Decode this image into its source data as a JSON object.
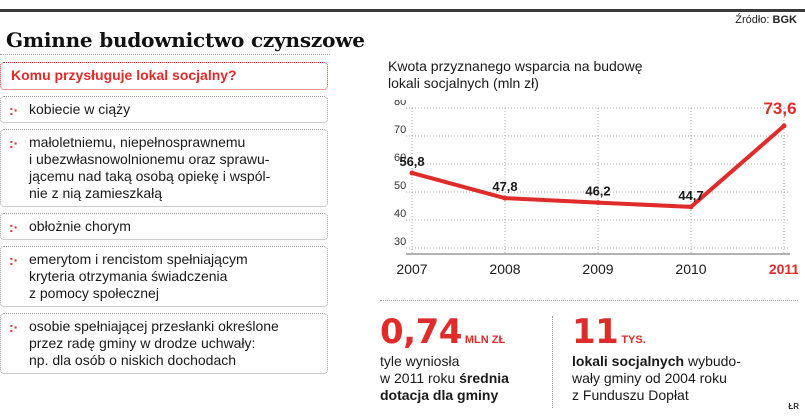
{
  "header": {
    "title": "Gminne budownictwo czynszowe",
    "source_label": "Źródło:",
    "source_value": "BGK"
  },
  "eligibility": {
    "question": "Komu przysługuje lokal socjalny?",
    "items": [
      {
        "lines": [
          "kobiecie w ciąży"
        ]
      },
      {
        "lines": [
          "małoletniemu, niepełnosprawnemu",
          "i ubezwłasnowolnionemu oraz sprawu-",
          "jącemu nad taką osobą opiekę i wspól-",
          "nie z nią zamieszkałą"
        ]
      },
      {
        "lines": [
          "obłożnie chorym"
        ]
      },
      {
        "lines": [
          "emerytom i rencistom spełniającym",
          "kryteria otrzymania świadczenia",
          "z pomocy społecznej"
        ]
      },
      {
        "lines": [
          "osobie spełniającej przesłanki określone",
          "przez radę gminy w drodze uchwały:",
          "np. dla osób o niskich dochodach"
        ]
      }
    ]
  },
  "colors": {
    "accent": "#e02b2b",
    "grid": "#a8a8a8",
    "text": "#1a1a1a"
  },
  "chart_data": {
    "type": "line",
    "title_lines": [
      "Kwota przyznanego wsparcia na budowę",
      "lokali socjalnych (mln zł)"
    ],
    "categories": [
      "2007",
      "2008",
      "2009",
      "2010",
      "2011"
    ],
    "values": [
      56.8,
      47.8,
      46.2,
      44.7,
      73.6
    ],
    "value_labels": [
      "56,8",
      "47,8",
      "46,2",
      "44,7",
      "73,6"
    ],
    "highlight_index": 4,
    "ylim": [
      30,
      80
    ],
    "yticks": [
      30,
      40,
      50,
      60,
      70,
      80
    ],
    "grid": true
  },
  "stats": [
    {
      "number": "0,74",
      "unit": "MLN ZŁ",
      "text_plain_1": "tyle wyniosła",
      "text_plain_2": "w 2011 roku ",
      "text_bold_2": "średnia",
      "text_bold_3": "dotacja dla gminy"
    },
    {
      "number": "11",
      "unit": "TYS.",
      "text_bold_1": "lokali socjalnych",
      "text_plain_1": " wybudo-",
      "text_plain_2": "wały gminy od 2004 roku",
      "text_plain_3": "z Funduszu Dopłat"
    }
  ],
  "credit": "ŁR"
}
